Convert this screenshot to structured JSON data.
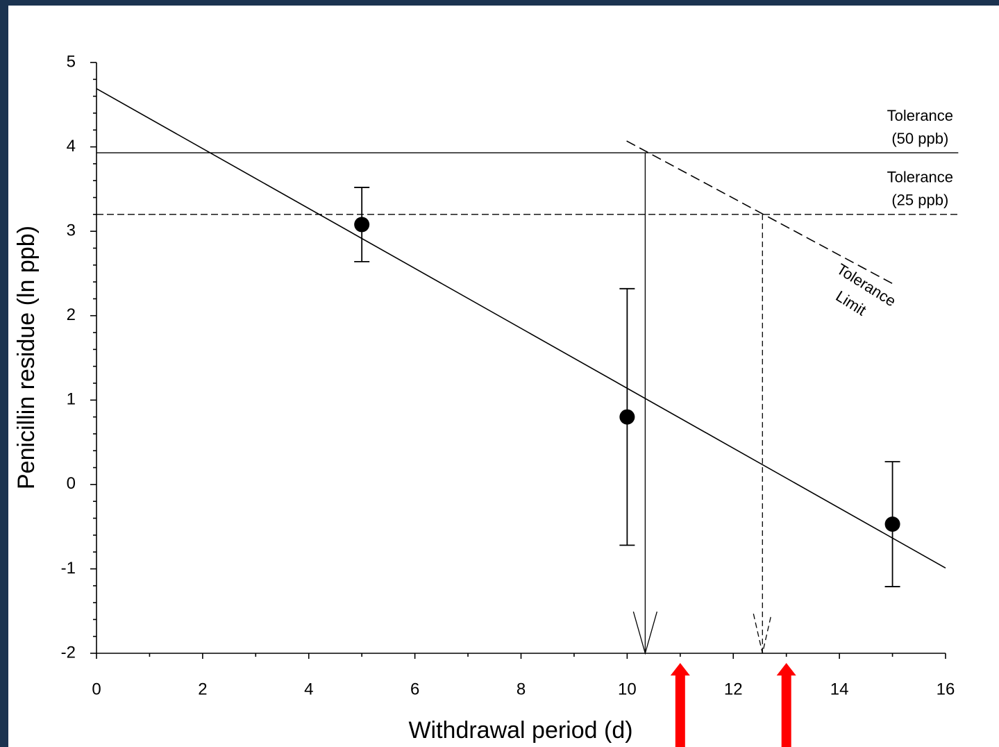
{
  "chart_data": {
    "type": "scatter",
    "x_label": "Withdrawal period (d)",
    "y_label": "Penicillin residue (ln ppb)",
    "xlim": [
      0,
      16
    ],
    "ylim": [
      -2,
      5
    ],
    "xticks": [
      0,
      2,
      4,
      6,
      8,
      10,
      12,
      14,
      16
    ],
    "yticks": [
      -2,
      -1,
      0,
      1,
      2,
      3,
      4,
      5
    ],
    "points": {
      "x": [
        5,
        10,
        15
      ],
      "values": [
        3.08,
        0.8,
        -0.47
      ],
      "errors": [
        0.44,
        1.52,
        0.74
      ],
      "color": "#000000"
    },
    "fit": {
      "x": [
        0,
        16
      ],
      "values": [
        4.69,
        -0.99
      ],
      "color": "#000000"
    },
    "reference_lines": [
      {
        "label_lines": [
          "Tolerance",
          "(50 ppb)"
        ],
        "y": 3.93,
        "x": [
          0,
          16.24
        ],
        "style": "solid"
      },
      {
        "label_lines": [
          "Tolerance",
          "(25 ppb)"
        ],
        "y": 3.2,
        "x": [
          0,
          16.24
        ],
        "style": "dashed"
      }
    ],
    "tolerance_limit": {
      "label_lines": [
        "Tolerance",
        "Limit"
      ],
      "x": [
        9.99,
        15.03
      ],
      "values": [
        4.07,
        2.37
      ]
    },
    "drop_lines": [
      {
        "x": 10.34,
        "from": 3.93,
        "style": "solid"
      },
      {
        "x": 12.55,
        "from": 3.2,
        "style": "dashed"
      }
    ],
    "highlight_arrows": {
      "x": [
        11,
        13
      ],
      "color": "#ff0000"
    }
  }
}
